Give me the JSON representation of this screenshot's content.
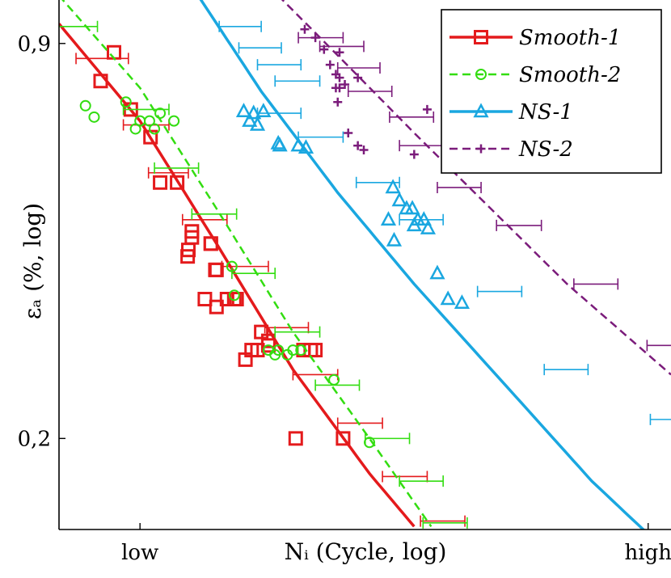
{
  "chart_data": {
    "type": "scatter",
    "xlabel": "Nᵢ (Cycle, log)",
    "ylabel": "εₐ (%, log)",
    "x_scale": "log",
    "y_scale": "log",
    "x_ticks": [
      {
        "value": 1,
        "label": "low"
      },
      {
        "value": 100,
        "label": "high"
      }
    ],
    "y_ticks": [
      {
        "value": 0.2,
        "label": "0,2"
      },
      {
        "value": 0.9,
        "label": "0,9"
      }
    ],
    "xlim": [
      0.48,
      123
    ],
    "ylim": [
      0.1414,
      1.062
    ],
    "grid": false,
    "legend_position": "top-right",
    "series": [
      {
        "name": "Smooth-1",
        "color": "#e41a1c",
        "marker": "square",
        "line_style": "solid",
        "points": [
          [
            0.7,
            0.78
          ],
          [
            0.79,
            0.87
          ],
          [
            0.92,
            0.7
          ],
          [
            1.1,
            0.63
          ],
          [
            1.2,
            0.53
          ],
          [
            1.4,
            0.53
          ],
          [
            1.6,
            0.44
          ],
          [
            1.6,
            0.43
          ],
          [
            1.9,
            0.42
          ],
          [
            1.9,
            0.42
          ],
          [
            1.55,
            0.41
          ],
          [
            1.54,
            0.4
          ],
          [
            1.98,
            0.38
          ],
          [
            2.0,
            0.38
          ],
          [
            2.35,
            0.34
          ],
          [
            2.2,
            0.34
          ],
          [
            1.8,
            0.34
          ],
          [
            2.0,
            0.33
          ],
          [
            2.4,
            0.34
          ],
          [
            3.0,
            0.3
          ],
          [
            3.2,
            0.29
          ],
          [
            2.9,
            0.28
          ],
          [
            2.75,
            0.28
          ],
          [
            4.4,
            0.28
          ],
          [
            4.7,
            0.28
          ],
          [
            4.9,
            0.28
          ],
          [
            3.2,
            0.285
          ],
          [
            2.6,
            0.27
          ],
          [
            4.1,
            0.2
          ],
          [
            6.3,
            0.2
          ]
        ],
        "fit": [
          [
            0.48,
            0.97
          ],
          [
            1,
            0.67
          ],
          [
            2,
            0.42
          ],
          [
            4,
            0.26
          ],
          [
            8,
            0.175
          ],
          [
            12,
            0.143
          ]
        ],
        "error_bars": [
          [
            0.7,
            0.85,
            0.56,
            0.9
          ],
          [
            1.05,
            0.66,
            0.86,
            1.3
          ],
          [
            1.3,
            0.55,
            1.08,
            1.55
          ],
          [
            1.8,
            0.46,
            1.47,
            2.2
          ],
          [
            2.6,
            0.385,
            2.1,
            3.2
          ],
          [
            3.8,
            0.305,
            3.1,
            4.6
          ],
          [
            4.9,
            0.255,
            4.0,
            6.0
          ],
          [
            7.4,
            0.212,
            6.0,
            9.0
          ],
          [
            11.0,
            0.173,
            9.0,
            13.5
          ],
          [
            15.5,
            0.146,
            12.7,
            19.0
          ]
        ]
      },
      {
        "name": "Smooth-2",
        "color": "#33dd11",
        "marker": "circle",
        "line_style": "dashed",
        "points": [
          [
            0.61,
            0.71
          ],
          [
            0.66,
            0.68
          ],
          [
            0.88,
            0.72
          ],
          [
            1.0,
            0.67
          ],
          [
            1.09,
            0.67
          ],
          [
            1.2,
            0.69
          ],
          [
            0.96,
            0.65
          ],
          [
            1.14,
            0.65
          ],
          [
            1.36,
            0.67
          ],
          [
            2.3,
            0.385
          ],
          [
            2.35,
            0.345
          ],
          [
            3.2,
            0.28
          ],
          [
            3.5,
            0.28
          ],
          [
            3.8,
            0.275
          ],
          [
            4.0,
            0.28
          ],
          [
            4.3,
            0.28
          ],
          [
            3.4,
            0.275
          ],
          [
            5.8,
            0.25
          ],
          [
            8.0,
            0.197
          ]
        ],
        "fit": [
          [
            0.48,
            1.08
          ],
          [
            1,
            0.76
          ],
          [
            2,
            0.48
          ],
          [
            4,
            0.3
          ],
          [
            8,
            0.2
          ],
          [
            14,
            0.143
          ]
        ],
        "error_bars": [
          [
            0.55,
            0.96,
            0.45,
            0.68
          ],
          [
            1.06,
            0.7,
            0.86,
            1.3
          ],
          [
            1.4,
            0.56,
            1.14,
            1.7
          ],
          [
            2.0,
            0.47,
            1.6,
            2.4
          ],
          [
            2.8,
            0.375,
            2.3,
            3.4
          ],
          [
            4.2,
            0.3,
            3.4,
            5.1
          ],
          [
            6.0,
            0.245,
            4.9,
            7.3
          ],
          [
            9.4,
            0.2,
            7.7,
            11.5
          ],
          [
            12.8,
            0.17,
            10.5,
            15.6
          ],
          [
            15.9,
            0.145,
            13.0,
            19.4
          ]
        ]
      },
      {
        "name": "NS-1",
        "color": "#1aa7e0",
        "marker": "triangle",
        "line_style": "solid",
        "points": [
          [
            2.56,
            0.695
          ],
          [
            2.8,
            0.69
          ],
          [
            3.06,
            0.695
          ],
          [
            3.55,
            0.61
          ],
          [
            2.7,
            0.67
          ],
          [
            2.9,
            0.66
          ],
          [
            4.2,
            0.61
          ],
          [
            4.5,
            0.605
          ],
          [
            3.5,
            0.615
          ],
          [
            9.9,
            0.52
          ],
          [
            10.5,
            0.495
          ],
          [
            11.2,
            0.48
          ],
          [
            11.8,
            0.48
          ],
          [
            12.4,
            0.46
          ],
          [
            13.1,
            0.46
          ],
          [
            13.6,
            0.445
          ],
          [
            9.5,
            0.46
          ],
          [
            10.0,
            0.425
          ],
          [
            12.0,
            0.45
          ],
          [
            16.3,
            0.34
          ],
          [
            14.8,
            0.375
          ],
          [
            18.5,
            0.335
          ]
        ],
        "fit": [
          [
            1.6,
            1.12
          ],
          [
            3,
            0.75
          ],
          [
            6,
            0.51
          ],
          [
            12,
            0.36
          ],
          [
            30,
            0.235
          ],
          [
            60,
            0.17
          ],
          [
            123,
            0.128
          ]
        ],
        "error_bars": [
          [
            2.5,
            0.96,
            2.05,
            3.0
          ],
          [
            3.0,
            0.885,
            2.45,
            3.6
          ],
          [
            3.5,
            0.83,
            2.9,
            4.3
          ],
          [
            4.2,
            0.78,
            3.4,
            5.1
          ],
          [
            3.5,
            0.69,
            2.9,
            4.3
          ],
          [
            5.1,
            0.63,
            4.2,
            6.3
          ],
          [
            8.6,
            0.53,
            7.1,
            10.5
          ],
          [
            12.8,
            0.46,
            10.5,
            15.6
          ],
          [
            26.0,
            0.35,
            21.3,
            31.8
          ],
          [
            48.0,
            0.26,
            39.0,
            58.0
          ],
          [
            125.0,
            0.215,
            102.0,
            152.0
          ]
        ]
      },
      {
        "name": "NS-2",
        "color": "#7b1c7b",
        "marker": "plus",
        "line_style": "dashed",
        "points": [
          [
            4.45,
            0.95
          ],
          [
            4.9,
            0.92
          ],
          [
            5.3,
            0.88
          ],
          [
            6.1,
            0.87
          ],
          [
            5.6,
            0.83
          ],
          [
            5.9,
            0.8
          ],
          [
            6.1,
            0.79
          ],
          [
            6.4,
            0.77
          ],
          [
            6.1,
            0.76
          ],
          [
            7.2,
            0.79
          ],
          [
            5.9,
            0.76
          ],
          [
            6.0,
            0.72
          ],
          [
            6.6,
            0.64
          ],
          [
            7.2,
            0.61
          ],
          [
            7.6,
            0.6
          ],
          [
            13.5,
            0.7
          ],
          [
            12.0,
            0.59
          ],
          [
            17.0,
            0.595
          ]
        ],
        "fit": [
          [
            3.5,
            1.08
          ],
          [
            6,
            0.86
          ],
          [
            12,
            0.64
          ],
          [
            24,
            0.48
          ],
          [
            48,
            0.36
          ],
          [
            123,
            0.255
          ]
        ],
        "error_bars": [
          [
            5.1,
            0.92,
            4.2,
            6.3
          ],
          [
            6.3,
            0.89,
            5.1,
            7.6
          ],
          [
            7.2,
            0.82,
            6.0,
            8.8
          ],
          [
            8.0,
            0.75,
            6.6,
            9.8
          ],
          [
            11.8,
            0.68,
            9.6,
            14.3
          ],
          [
            12.8,
            0.61,
            10.5,
            15.6
          ],
          [
            18.0,
            0.52,
            14.8,
            22.0
          ],
          [
            31.0,
            0.45,
            25.3,
            38.0
          ],
          [
            62.0,
            0.36,
            51.0,
            76.0
          ],
          [
            121.0,
            0.285,
            99.0,
            148.0
          ]
        ]
      }
    ]
  }
}
